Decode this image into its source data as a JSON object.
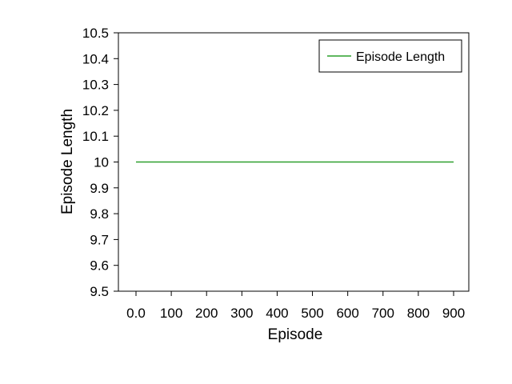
{
  "chart_data": {
    "type": "line",
    "title": "",
    "xlabel": "Episode",
    "ylabel": "Episode Length",
    "xlim": [
      0,
      900
    ],
    "ylim": [
      9.5,
      10.5
    ],
    "x_ticks": [
      0,
      100,
      200,
      300,
      400,
      500,
      600,
      700,
      800,
      900
    ],
    "x_tick_labels": [
      "0.0",
      "100",
      "200",
      "300",
      "400",
      "500",
      "600",
      "700",
      "800",
      "900"
    ],
    "y_ticks": [
      9.5,
      9.6,
      9.7,
      9.8,
      9.9,
      10.0,
      10.1,
      10.2,
      10.3,
      10.4,
      10.5
    ],
    "y_tick_labels": [
      "9.5",
      "9.6",
      "9.7",
      "9.8",
      "9.9",
      "10",
      "10.1",
      "10.2",
      "10.3",
      "10.4",
      "10.5"
    ],
    "grid": false,
    "legend_position": "top-right",
    "series": [
      {
        "name": "Episode Length",
        "color": "#2ca02c",
        "x": [
          0,
          100,
          200,
          300,
          400,
          500,
          600,
          700,
          800,
          900
        ],
        "values": [
          10,
          10,
          10,
          10,
          10,
          10,
          10,
          10,
          10,
          10
        ]
      }
    ]
  }
}
